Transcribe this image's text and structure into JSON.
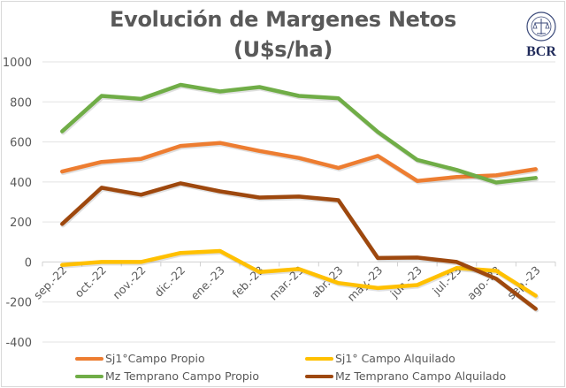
{
  "chart_data": {
    "type": "line",
    "title": "Evolución de Margenes Netos",
    "subtitle": "(U$s/ha)",
    "xlabel": "",
    "ylabel": "",
    "ylim": [
      -400,
      1000
    ],
    "yticks": [
      -400,
      -200,
      0,
      200,
      400,
      600,
      800,
      1000
    ],
    "grid": true,
    "legend_position": "bottom",
    "categories": [
      "sep.-22",
      "oct.-22",
      "nov.-22",
      "dic.-22",
      "ene.-23",
      "feb.-23",
      "mar.-23",
      "abr.-23",
      "may.-23",
      "jun.-23",
      "jul.-23",
      "ago.-23",
      "sep.-23"
    ],
    "series": [
      {
        "name": "Sj1°Campo Propio",
        "color": "#ed7d31",
        "values": [
          452,
          500,
          515,
          580,
          595,
          555,
          520,
          470,
          530,
          405,
          425,
          433,
          464
        ]
      },
      {
        "name": "Sj1° Campo Alquilado",
        "color": "#ffc000",
        "values": [
          -15,
          0,
          0,
          45,
          55,
          -50,
          -35,
          -105,
          -130,
          -115,
          -30,
          -44,
          -168
        ]
      },
      {
        "name": "Mz Temprano  Campo Propio",
        "color": "#70ad47",
        "values": [
          653,
          830,
          815,
          885,
          852,
          874,
          830,
          818,
          650,
          510,
          460,
          397,
          420
        ]
      },
      {
        "name": "Mz Temprano  Campo Alquilado",
        "color": "#9e480e",
        "values": [
          190,
          371,
          336,
          393,
          353,
          322,
          327,
          309,
          20,
          22,
          0,
          -84,
          -234
        ]
      }
    ]
  },
  "logo": {
    "text": "BCR",
    "icon": "bcr-seal-icon"
  }
}
